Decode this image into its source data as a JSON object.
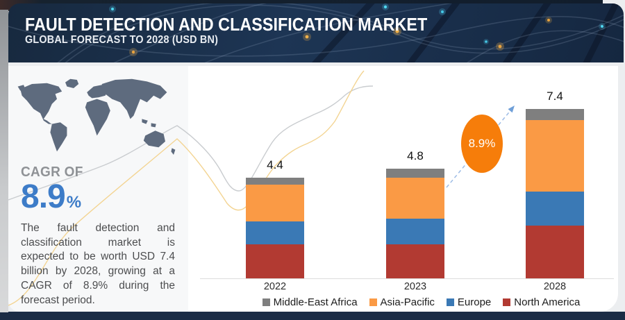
{
  "header": {
    "title": "FAULT DETECTION AND CLASSIFICATION MARKET",
    "subtitle": "GLOBAL FORECAST TO 2028 (USD BN)"
  },
  "sidebar": {
    "cagr_label": "CAGR OF",
    "cagr_value": "8.9",
    "cagr_unit": "%",
    "cagr_color": "#3d7cc8",
    "description": "The fault detection and classification market is expected to be worth USD 7.4 billion by 2028, growing at a CAGR of 8.9% during the forecast period."
  },
  "growth_badge": {
    "label": "8.9%",
    "color": "#f67d0a"
  },
  "chart_data": {
    "type": "bar",
    "stacked": true,
    "title": "Fault Detection and Classification Market, Global Forecast to 2028 (USD BN)",
    "categories": [
      "2022",
      "2023",
      "2028"
    ],
    "series": [
      {
        "name": "North America",
        "color": "#b23a32",
        "values": [
          1.5,
          1.5,
          2.3
        ]
      },
      {
        "name": "Europe",
        "color": "#3a79b5",
        "values": [
          1.0,
          1.1,
          1.5
        ]
      },
      {
        "name": "Asia-Pacific",
        "color": "#fa9a45",
        "values": [
          1.6,
          1.8,
          3.1
        ]
      },
      {
        "name": "Middle-East Africa",
        "color": "#7f7f7f",
        "values": [
          0.3,
          0.4,
          0.5
        ]
      }
    ],
    "totals": [
      4.4,
      4.8,
      7.4
    ],
    "cagr_annotation": "8.9%",
    "legend_order": [
      "Middle-East Africa",
      "Asia-Pacific",
      "Europe",
      "North America"
    ],
    "legend_position": "bottom",
    "grid": false,
    "ylim": [
      0,
      8
    ],
    "unit": "USD BN"
  }
}
